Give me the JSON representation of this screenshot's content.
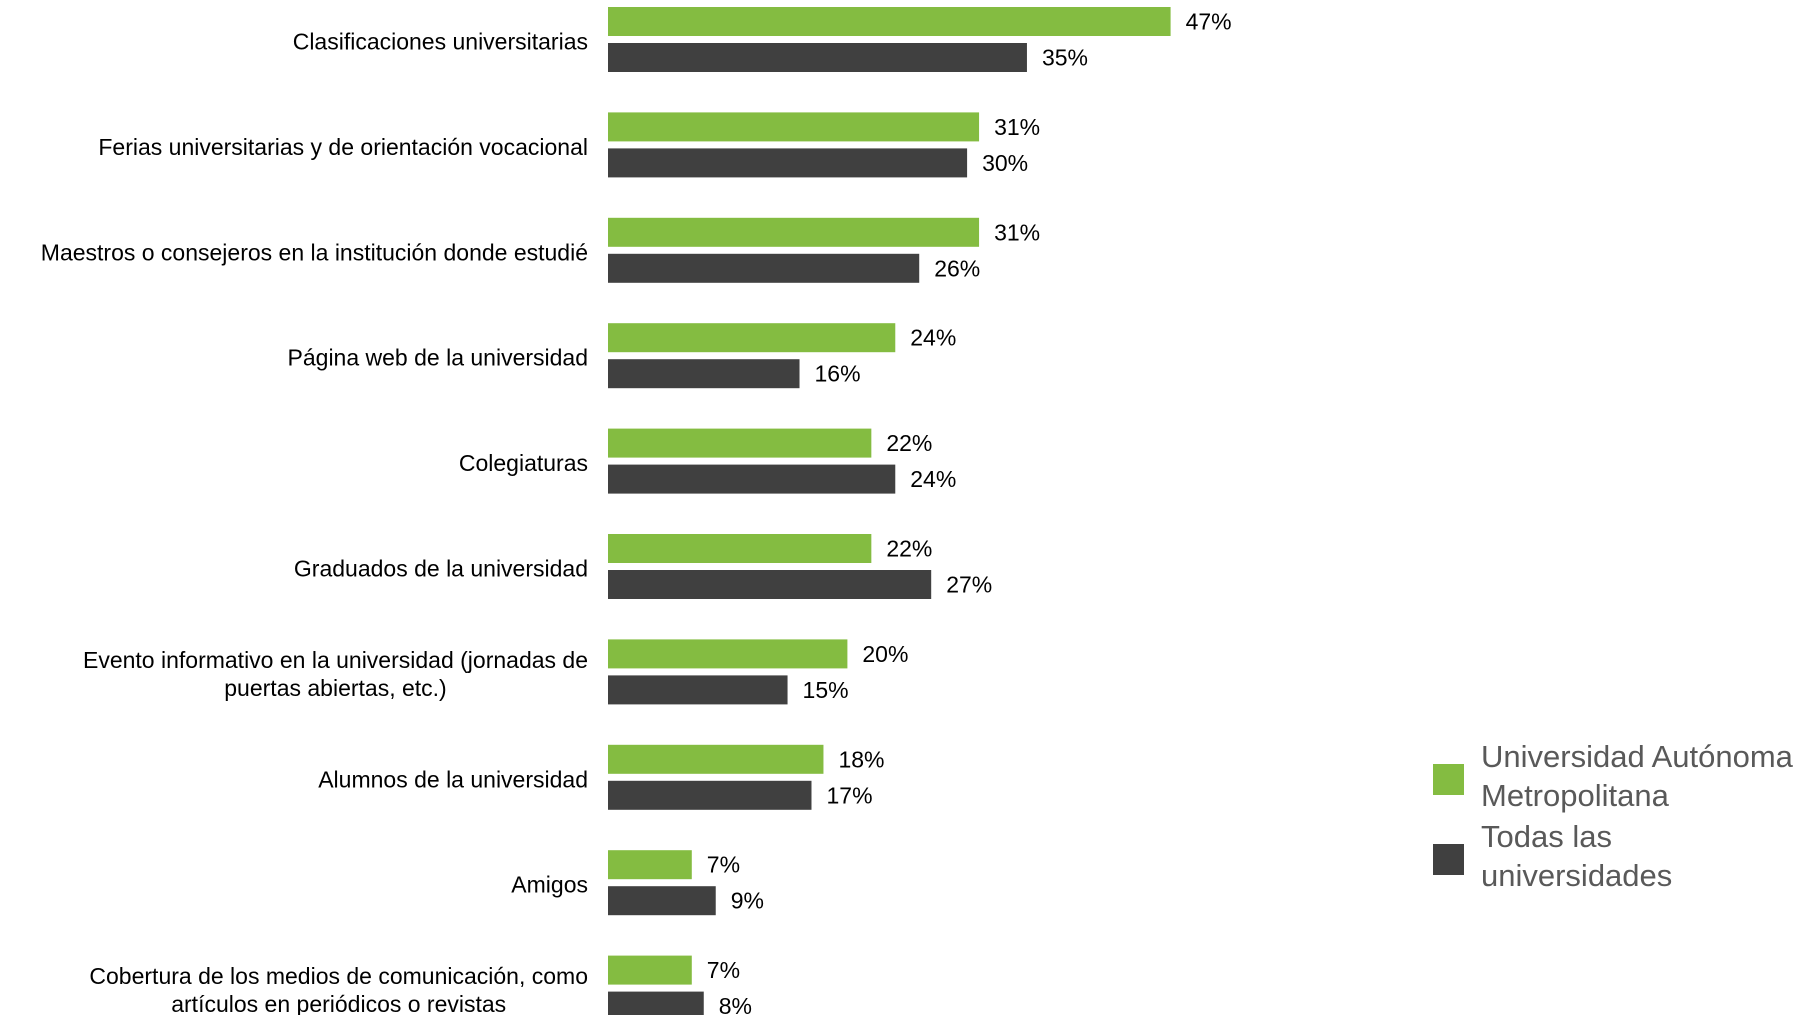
{
  "chart_data": {
    "type": "bar",
    "orientation": "horizontal",
    "categories": [
      [
        "Clasificaciones universitarias"
      ],
      [
        "Ferias universitarias y de orientación vocacional"
      ],
      [
        "Maestros o consejeros en la institución donde estudié"
      ],
      [
        "Página web de la universidad"
      ],
      [
        "Colegiaturas"
      ],
      [
        "Graduados de la universidad"
      ],
      [
        "Evento informativo en la universidad (jornadas de",
        "puertas abiertas, etc.)"
      ],
      [
        "Alumnos de la universidad"
      ],
      [
        "Amigos"
      ],
      [
        "Cobertura de los medios de comunicación, como",
        "artículos en periódicos o revistas"
      ]
    ],
    "series": [
      {
        "name": "Universidad Autónoma Metropolitana",
        "legend_lines": [
          "Universidad Autónoma",
          "Metropolitana"
        ],
        "color": "#84bc41",
        "values": [
          47,
          31,
          31,
          24,
          22,
          22,
          20,
          18,
          7,
          7
        ],
        "labels": [
          "47%",
          "31%",
          "31%",
          "24%",
          "22%",
          "22%",
          "20%",
          "18%",
          "7%",
          "7%"
        ]
      },
      {
        "name": "Todas las universidades",
        "legend_lines": [
          "Todas las",
          "universidades"
        ],
        "color": "#404040",
        "values": [
          35,
          30,
          26,
          16,
          24,
          27,
          15,
          17,
          9,
          8
        ],
        "labels": [
          "35%",
          "30%",
          "26%",
          "16%",
          "24%",
          "27%",
          "15%",
          "17%",
          "9%",
          "8%"
        ]
      }
    ],
    "xlim": [
      0,
      47
    ],
    "grid": false,
    "legend_position": "right"
  }
}
